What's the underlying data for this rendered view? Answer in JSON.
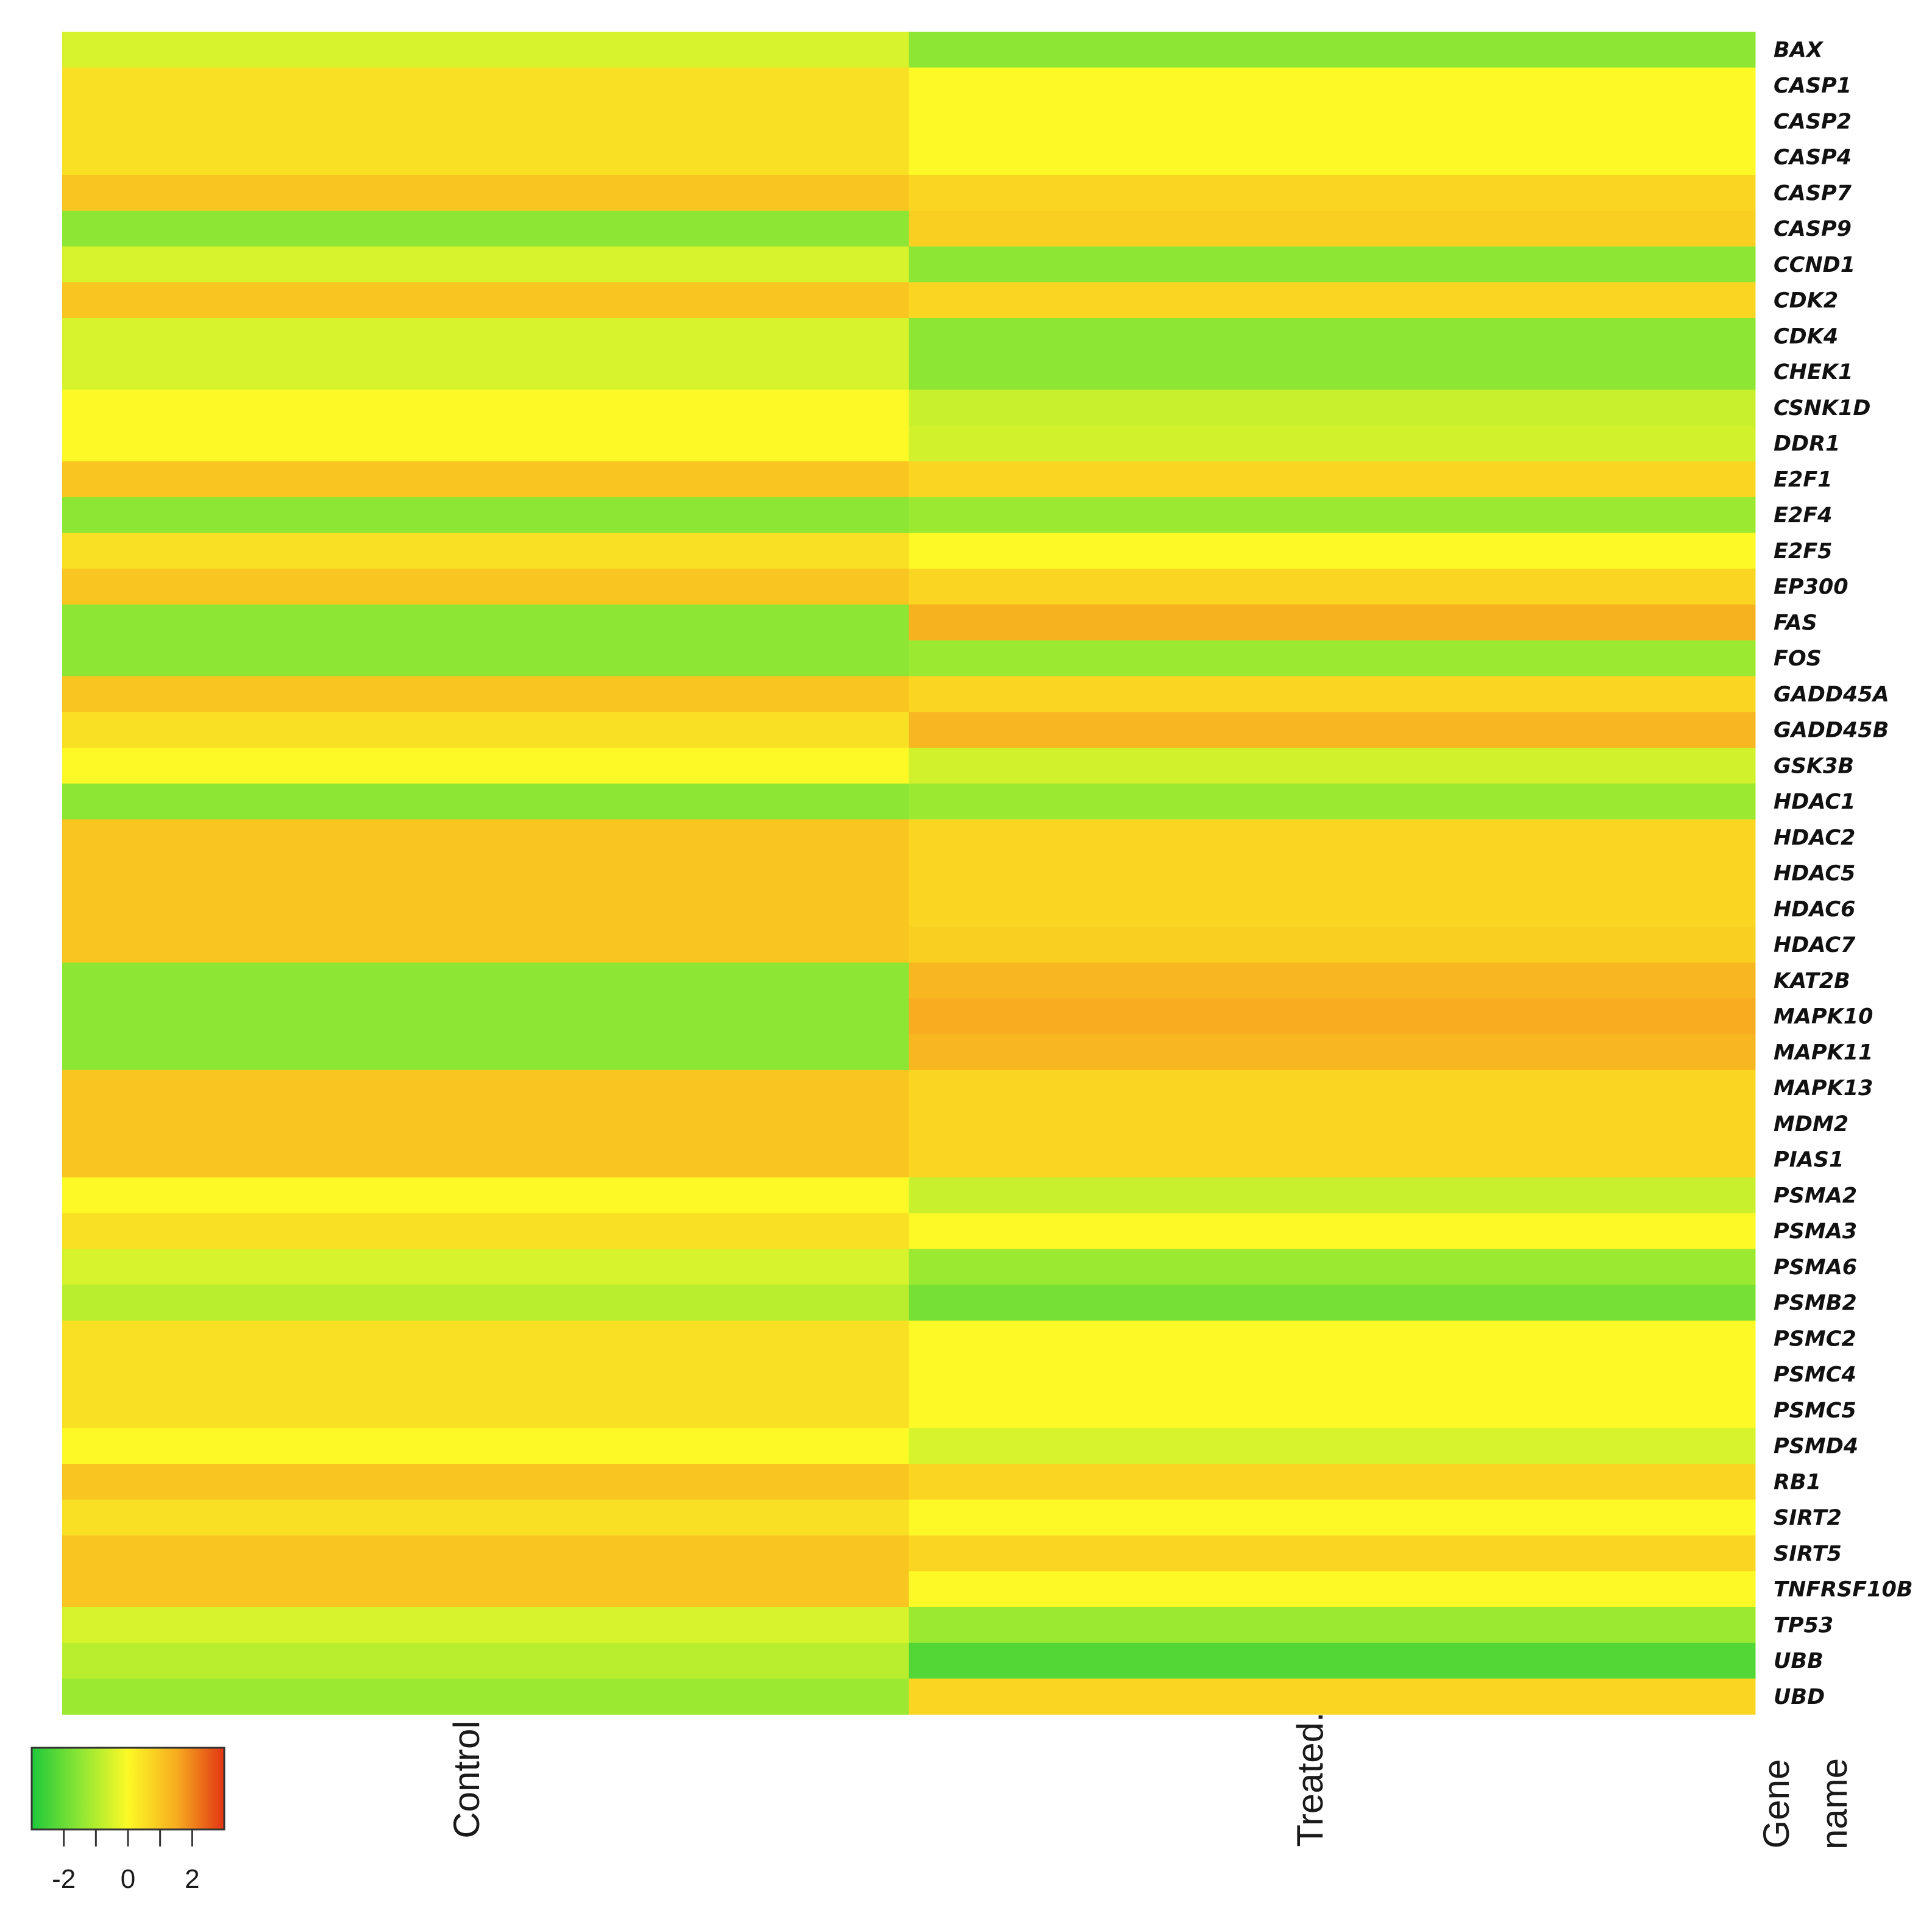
{
  "chart_data": {
    "type": "heatmap",
    "columns": [
      "Control",
      "Treated."
    ],
    "row_label_header": [
      "Gene",
      "name"
    ],
    "rows": [
      "BAX",
      "CASP1",
      "CASP2",
      "CASP4",
      "CASP7",
      "CASP9",
      "CCND1",
      "CDK2",
      "CDK4",
      "CHEK1",
      "CSNK1D",
      "DDR1",
      "E2F1",
      "E2F4",
      "E2F5",
      "EP300",
      "FAS",
      "FOS",
      "GADD45A",
      "GADD45B",
      "GSK3B",
      "HDAC1",
      "HDAC2",
      "HDAC5",
      "HDAC6",
      "HDAC7",
      "KAT2B",
      "MAPK10",
      "MAPK11",
      "MAPK13",
      "MDM2",
      "PIAS1",
      "PSMA2",
      "PSMA3",
      "PSMA6",
      "PSMB2",
      "PSMC2",
      "PSMC4",
      "PSMC5",
      "PSMD4",
      "RB1",
      "SIRT2",
      "SIRT5",
      "TNFRSF10B",
      "TP53",
      "UBB",
      "UBD"
    ],
    "values": [
      [
        -0.5,
        -1.5
      ],
      [
        0.5,
        0.0
      ],
      [
        0.5,
        0.0
      ],
      [
        0.5,
        0.0
      ],
      [
        1.0,
        0.7
      ],
      [
        -1.5,
        0.8
      ],
      [
        -0.5,
        -1.5
      ],
      [
        1.0,
        0.7
      ],
      [
        -0.5,
        -1.5
      ],
      [
        -0.5,
        -1.5
      ],
      [
        0.0,
        -0.7
      ],
      [
        0.0,
        -0.6
      ],
      [
        1.0,
        0.7
      ],
      [
        -1.5,
        -1.3
      ],
      [
        0.5,
        0.0
      ],
      [
        1.0,
        0.7
      ],
      [
        -1.5,
        1.4
      ],
      [
        -1.5,
        -1.3
      ],
      [
        1.0,
        0.7
      ],
      [
        0.5,
        1.3
      ],
      [
        0.0,
        -0.6
      ],
      [
        -1.5,
        -1.3
      ],
      [
        1.0,
        0.7
      ],
      [
        1.0,
        0.7
      ],
      [
        1.0,
        0.7
      ],
      [
        1.0,
        0.8
      ],
      [
        -1.5,
        1.3
      ],
      [
        -1.5,
        1.5
      ],
      [
        -1.5,
        1.3
      ],
      [
        1.0,
        0.7
      ],
      [
        1.0,
        0.7
      ],
      [
        1.0,
        0.7
      ],
      [
        0.0,
        -0.7
      ],
      [
        0.5,
        0.0
      ],
      [
        -0.5,
        -1.3
      ],
      [
        -0.9,
        -1.8
      ],
      [
        0.5,
        0.0
      ],
      [
        0.5,
        0.0
      ],
      [
        0.5,
        0.0
      ],
      [
        0.0,
        -0.5
      ],
      [
        1.0,
        0.7
      ],
      [
        0.5,
        0.0
      ],
      [
        1.0,
        0.7
      ],
      [
        1.0,
        0.0
      ],
      [
        -0.5,
        -1.3
      ],
      [
        -0.9,
        -2.3
      ],
      [
        -1.3,
        0.7
      ]
    ],
    "colorscale": {
      "min": -3,
      "max": 3,
      "stops": [
        "#1ec93a",
        "#8de634",
        "#fcf926",
        "#f7ad1f",
        "#e23514"
      ],
      "ticks": [
        -2,
        0,
        2
      ],
      "tick_labels": [
        "-2",
        "0",
        "2"
      ]
    }
  }
}
